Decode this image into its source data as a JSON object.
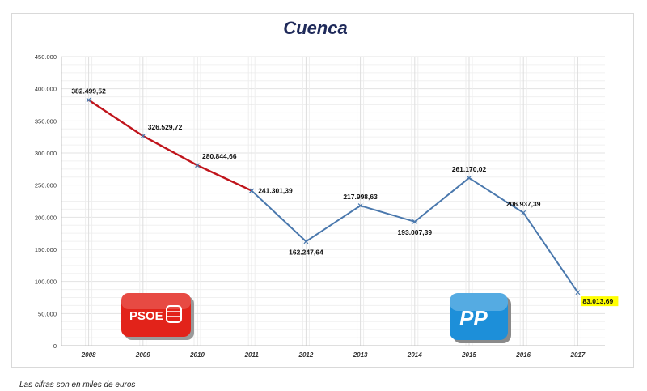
{
  "chart_data": {
    "type": "line",
    "title": "Cuenca",
    "xlabel": "",
    "ylabel": "",
    "ylim": [
      0,
      450000
    ],
    "y_ticks": [
      "0",
      "50.000",
      "100.000",
      "150.000",
      "200.000",
      "250.000",
      "300.000",
      "350.000",
      "400.000",
      "450.000"
    ],
    "y_tick_values": [
      0,
      50000,
      100000,
      150000,
      200000,
      250000,
      300000,
      350000,
      400000,
      450000
    ],
    "categories": [
      "2008",
      "2009",
      "2010",
      "2011",
      "2012",
      "2013",
      "2014",
      "2015",
      "2016",
      "2017"
    ],
    "series": [
      {
        "color": "#c0141b",
        "x": [
          "2008",
          "2009",
          "2010",
          "2011"
        ],
        "values": [
          382499.52,
          326529.72,
          280844.66,
          241301.39
        ]
      },
      {
        "color": "#4a78ad",
        "x": [
          "2011",
          "2012",
          "2013",
          "2014",
          "2015",
          "2016",
          "2017"
        ],
        "values": [
          241301.39,
          162247.64,
          217998.63,
          193007.39,
          261170.02,
          206937.39,
          83013.69
        ]
      }
    ],
    "data_labels": [
      "382.499,52",
      "326.529,72",
      "280.844,66",
      "241.301,39",
      "162.247,64",
      "217.998,63",
      "193.007,39",
      "261.170,02",
      "206.937,39",
      "83.013,69"
    ],
    "highlight_color": "#ffff00",
    "grid": true
  },
  "logos": {
    "psoe": {
      "text": "PSOE",
      "color": "#e2231a"
    },
    "pp": {
      "text": "PP",
      "color": "#1d8fd9"
    }
  },
  "footnote": "Las cifras son en miles de euros"
}
